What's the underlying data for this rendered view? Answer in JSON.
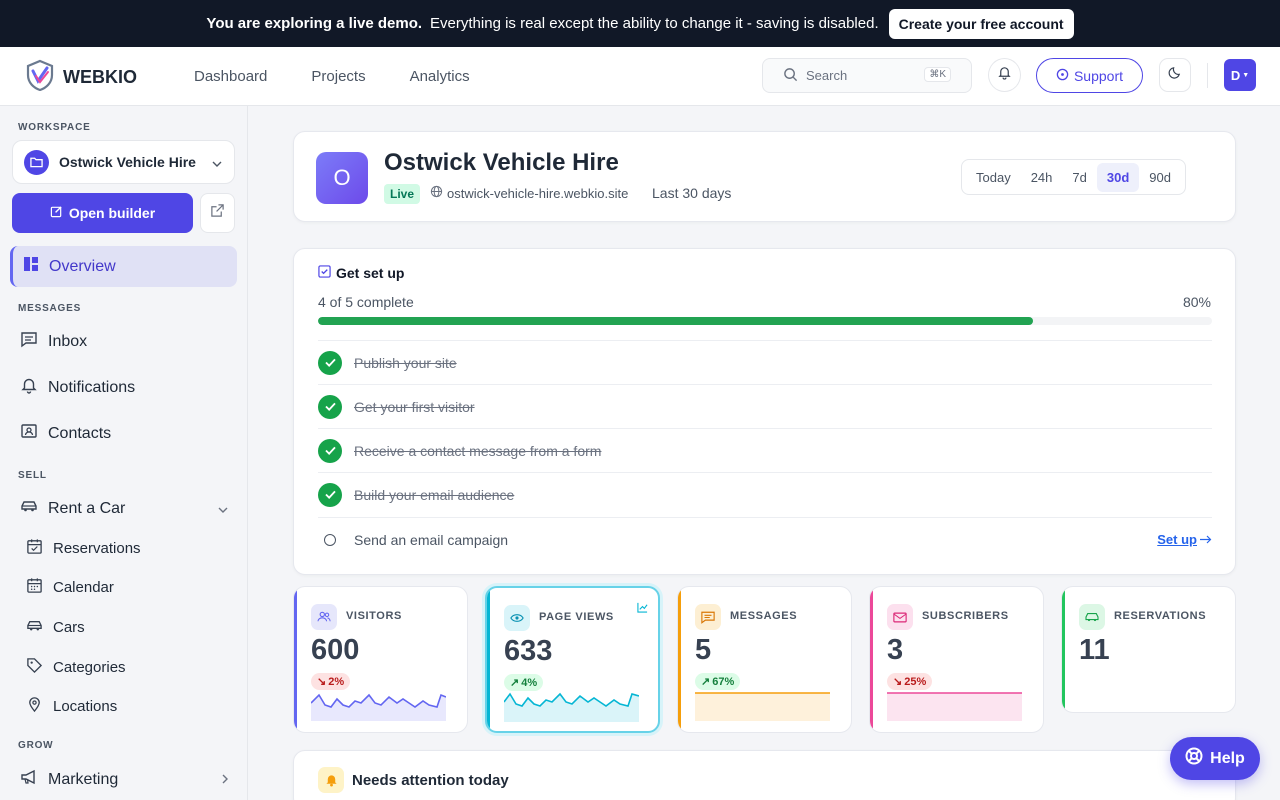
{
  "banner": {
    "lead": "You are exploring a live demo.",
    "text": "Everything is real except the ability to change it - saving is disabled.",
    "cta": "Create your free account"
  },
  "brand": {
    "name": "WEBKIO"
  },
  "nav": {
    "links": [
      "Dashboard",
      "Projects",
      "Analytics"
    ]
  },
  "search": {
    "placeholder": "Search",
    "shortcut": "⌘K"
  },
  "header": {
    "support": "Support",
    "avatar": "D"
  },
  "sidebar": {
    "workspace_heading": "WORKSPACE",
    "workspace_name": "Ostwick Vehicle Hire",
    "open_builder": "Open builder",
    "overview": "Overview",
    "messages_heading": "MESSAGES",
    "messages": [
      "Inbox",
      "Notifications",
      "Contacts"
    ],
    "sell_heading": "SELL",
    "rent": "Rent a Car",
    "rent_items": [
      "Reservations",
      "Calendar",
      "Cars",
      "Categories",
      "Locations"
    ],
    "grow_heading": "GROW",
    "grow": [
      "Marketing"
    ]
  },
  "site": {
    "initial": "O",
    "name": "Ostwick Vehicle Hire",
    "status": "Live",
    "domain": "ostwick-vehicle-hire.webkio.site",
    "period": "Last 30 days",
    "ranges": [
      "Today",
      "24h",
      "7d",
      "30d",
      "90d"
    ],
    "active_range": "30d"
  },
  "setup": {
    "title": "Get set up",
    "progress_text": "4 of 5 complete",
    "progress_pct": "80%",
    "progress": 0.8,
    "tasks": [
      {
        "label": "Publish your site",
        "done": true
      },
      {
        "label": "Get your first visitor",
        "done": true
      },
      {
        "label": "Receive a contact message from a form",
        "done": true
      },
      {
        "label": "Build your email audience",
        "done": true
      },
      {
        "label": "Send an email campaign",
        "done": false
      }
    ],
    "setup_link": "Set up"
  },
  "stats": [
    {
      "label": "VISITORS",
      "value": "600",
      "change": "2%",
      "direction": "down",
      "color": "#6366f1"
    },
    {
      "label": "PAGE VIEWS",
      "value": "633",
      "change": "4%",
      "direction": "up",
      "color": "#06b6d4"
    },
    {
      "label": "MESSAGES",
      "value": "5",
      "change": "67%",
      "direction": "up",
      "color": "#f59e0b"
    },
    {
      "label": "SUBSCRIBERS",
      "value": "3",
      "change": "25%",
      "direction": "down",
      "color": "#ec4899"
    },
    {
      "label": "RESERVATIONS",
      "value": "11",
      "color": "#22c55e"
    }
  ],
  "attention": {
    "title": "Needs attention today"
  },
  "help": {
    "label": "Help"
  }
}
